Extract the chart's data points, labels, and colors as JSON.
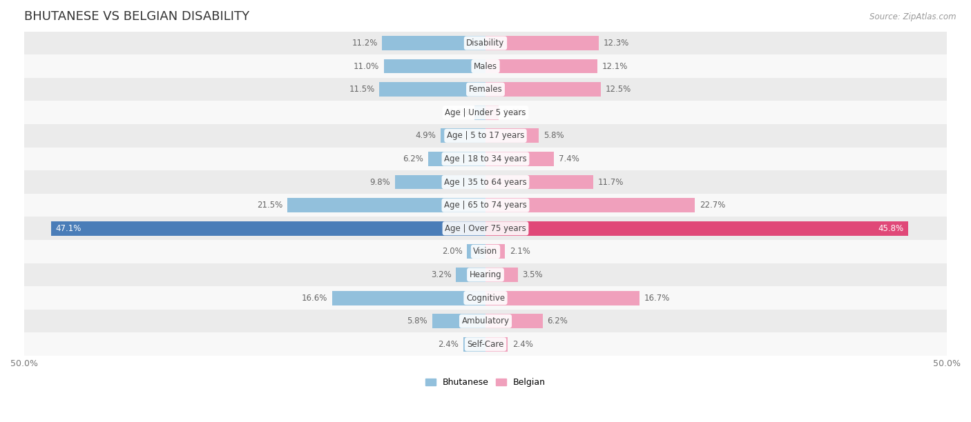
{
  "title": "BHUTANESE VS BELGIAN DISABILITY",
  "source": "Source: ZipAtlas.com",
  "categories": [
    "Disability",
    "Males",
    "Females",
    "Age | Under 5 years",
    "Age | 5 to 17 years",
    "Age | 18 to 34 years",
    "Age | 35 to 64 years",
    "Age | 65 to 74 years",
    "Age | Over 75 years",
    "Vision",
    "Hearing",
    "Cognitive",
    "Ambulatory",
    "Self-Care"
  ],
  "bhutanese": [
    11.2,
    11.0,
    11.5,
    1.2,
    4.9,
    6.2,
    9.8,
    21.5,
    47.1,
    2.0,
    3.2,
    16.6,
    5.8,
    2.4
  ],
  "belgian": [
    12.3,
    12.1,
    12.5,
    1.4,
    5.8,
    7.4,
    11.7,
    22.7,
    45.8,
    2.1,
    3.5,
    16.7,
    6.2,
    2.4
  ],
  "max_val": 50.0,
  "blue_color": "#92c0dc",
  "pink_color": "#f0a0bc",
  "blue_color_dark": "#4a7db8",
  "pink_color_dark": "#e04878",
  "bg_row_light": "#ebebeb",
  "bg_row_white": "#f8f8f8",
  "bar_height": 0.62,
  "title_fontsize": 13,
  "label_fontsize": 8.5,
  "tick_fontsize": 9,
  "value_label_color": "#666666"
}
